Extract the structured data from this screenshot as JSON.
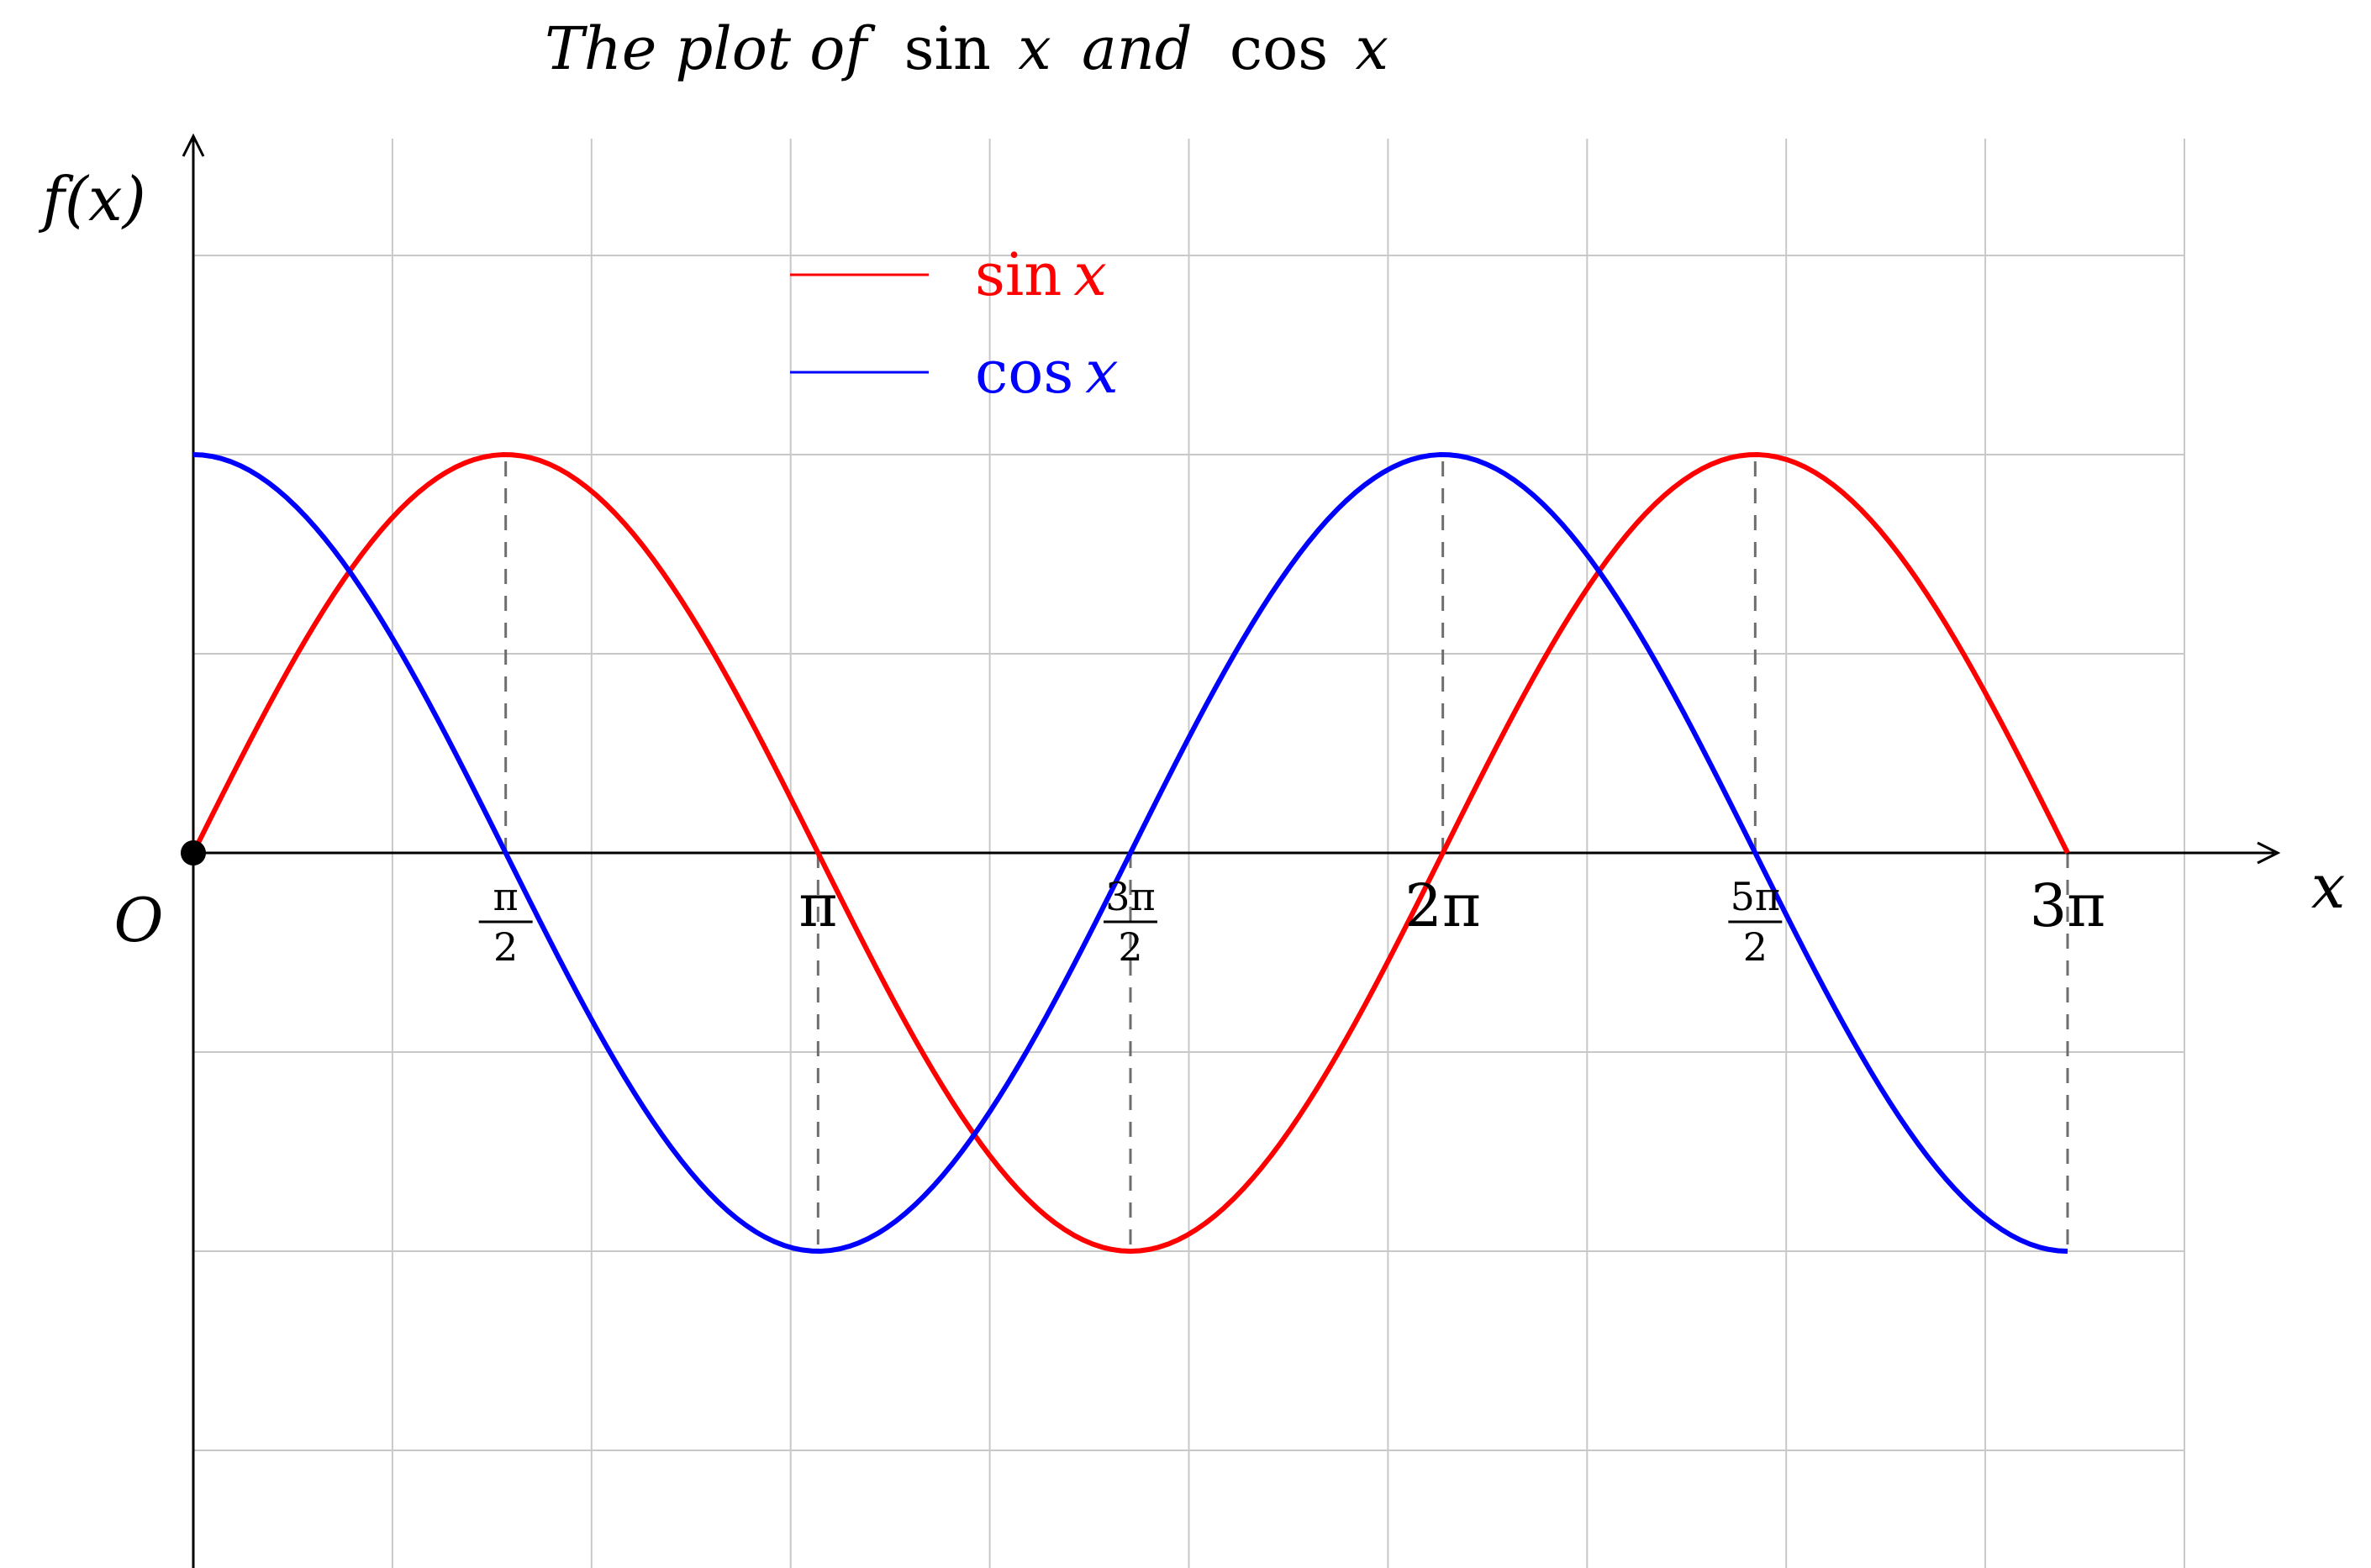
{
  "chart_data": {
    "type": "line",
    "title": {
      "part1": "The plot of",
      "fn1": "sin",
      "var1": "x",
      "conj": "and",
      "fn2": "cos",
      "var2": "x"
    },
    "xlabel": "x",
    "ylabel": "f(x)",
    "origin_label": "O",
    "xlim": [
      0,
      10.0531
    ],
    "ylim": [
      -1.8,
      1.8
    ],
    "grid": true,
    "legend_position": "top-left",
    "x_ticks": [
      {
        "value": 1.5708,
        "num": "π",
        "den": "2"
      },
      {
        "value": 3.1416,
        "text": "π"
      },
      {
        "value": 4.7124,
        "num": "3π",
        "den": "2"
      },
      {
        "value": 6.2832,
        "text": "2π"
      },
      {
        "value": 7.854,
        "num": "5π",
        "den": "2"
      },
      {
        "value": 9.4248,
        "text": "3π"
      }
    ],
    "series": [
      {
        "name": "sin x",
        "fn": "sin",
        "var": "x",
        "color": "#ff0000",
        "x_range": [
          0,
          9.4248
        ],
        "samples": 200
      },
      {
        "name": "cos x",
        "fn": "cos",
        "var": "x",
        "color": "#0000ff",
        "x_range": [
          0,
          9.4248
        ],
        "samples": 200
      }
    ],
    "dashed_drops": [
      {
        "x": 0,
        "y": 1
      },
      {
        "x": 1.5708,
        "y": 1
      },
      {
        "x": 3.1416,
        "y": -1
      },
      {
        "x": 4.7124,
        "y": -1
      },
      {
        "x": 6.2832,
        "y": 1
      },
      {
        "x": 7.854,
        "y": 1
      },
      {
        "x": 9.4248,
        "y": -1
      }
    ]
  }
}
